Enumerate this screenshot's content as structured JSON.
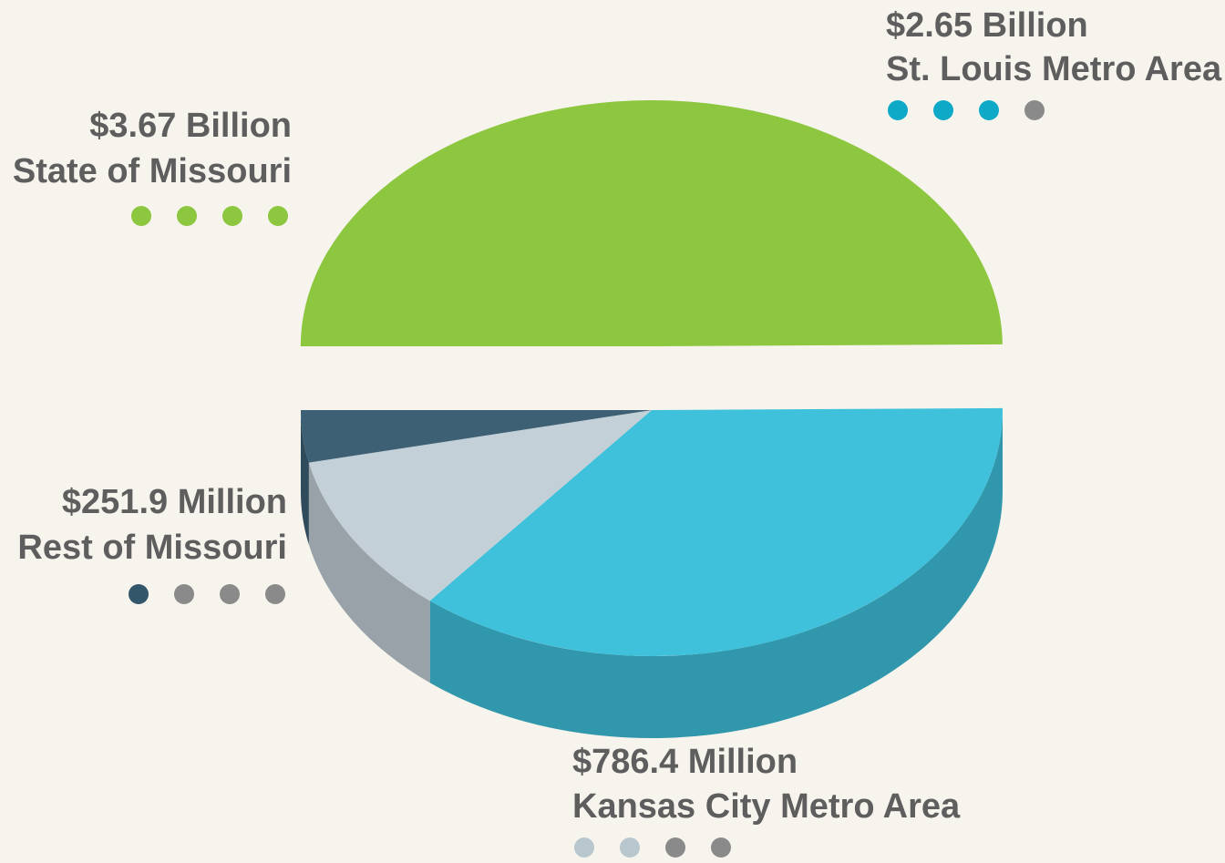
{
  "chart_data": {
    "type": "pie",
    "categories": [
      "State of Missouri",
      "St. Louis Metro Area",
      "Kansas City Metro Area",
      "Rest of Missouri"
    ],
    "values": [
      3670000000,
      2650000000,
      786400000,
      251900000
    ],
    "value_labels": [
      "$3.67 Billion",
      "$2.65 Billion",
      "$786.4 Million",
      "$251.9 Million"
    ],
    "colors": [
      "#8dc63f",
      "#3fc1dc",
      "#c3d0d8",
      "#3d6075"
    ]
  }
}
